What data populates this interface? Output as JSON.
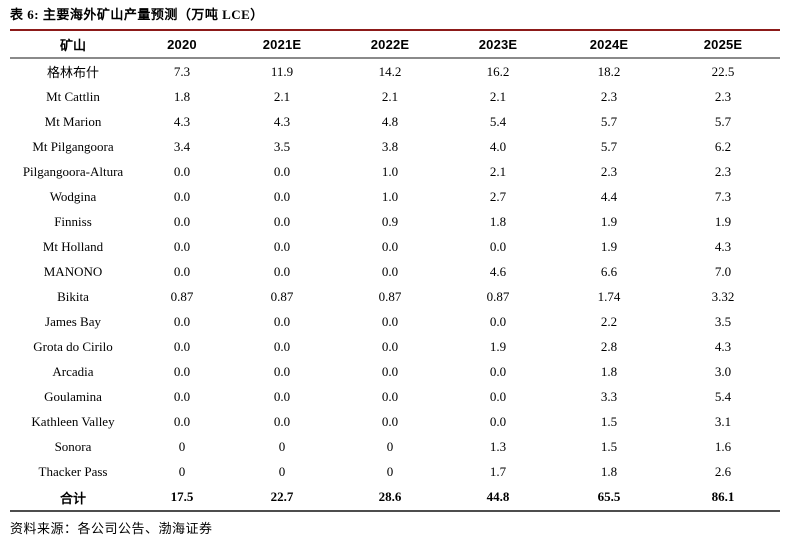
{
  "table": {
    "title": "表 6: 主要海外矿山产量预测（万吨 LCE）",
    "columns": [
      "矿山",
      "2020",
      "2021E",
      "2022E",
      "2023E",
      "2024E",
      "2025E"
    ],
    "rows": [
      {
        "name": "格林布什",
        "values": [
          "7.3",
          "11.9",
          "14.2",
          "16.2",
          "18.2",
          "22.5"
        ]
      },
      {
        "name": "Mt Cattlin",
        "values": [
          "1.8",
          "2.1",
          "2.1",
          "2.1",
          "2.3",
          "2.3"
        ]
      },
      {
        "name": "Mt Marion",
        "values": [
          "4.3",
          "4.3",
          "4.8",
          "5.4",
          "5.7",
          "5.7"
        ]
      },
      {
        "name": "Mt Pilgangoora",
        "values": [
          "3.4",
          "3.5",
          "3.8",
          "4.0",
          "5.7",
          "6.2"
        ]
      },
      {
        "name": "Pilgangoora-Altura",
        "values": [
          "0.0",
          "0.0",
          "1.0",
          "2.1",
          "2.3",
          "2.3"
        ]
      },
      {
        "name": "Wodgina",
        "values": [
          "0.0",
          "0.0",
          "1.0",
          "2.7",
          "4.4",
          "7.3"
        ]
      },
      {
        "name": "Finniss",
        "values": [
          "0.0",
          "0.0",
          "0.9",
          "1.8",
          "1.9",
          "1.9"
        ]
      },
      {
        "name": "Mt Holland",
        "values": [
          "0.0",
          "0.0",
          "0.0",
          "0.0",
          "1.9",
          "4.3"
        ]
      },
      {
        "name": "MANONO",
        "values": [
          "0.0",
          "0.0",
          "0.0",
          "4.6",
          "6.6",
          "7.0"
        ]
      },
      {
        "name": "Bikita",
        "values": [
          "0.87",
          "0.87",
          "0.87",
          "0.87",
          "1.74",
          "3.32"
        ]
      },
      {
        "name": "James Bay",
        "values": [
          "0.0",
          "0.0",
          "0.0",
          "0.0",
          "2.2",
          "3.5"
        ]
      },
      {
        "name": "Grota do Cirilo",
        "values": [
          "0.0",
          "0.0",
          "0.0",
          "1.9",
          "2.8",
          "4.3"
        ]
      },
      {
        "name": "Arcadia",
        "values": [
          "0.0",
          "0.0",
          "0.0",
          "0.0",
          "1.8",
          "3.0"
        ]
      },
      {
        "name": "Goulamina",
        "values": [
          "0.0",
          "0.0",
          "0.0",
          "0.0",
          "3.3",
          "5.4"
        ]
      },
      {
        "name": "Kathleen Valley",
        "values": [
          "0.0",
          "0.0",
          "0.0",
          "0.0",
          "1.5",
          "3.1"
        ]
      },
      {
        "name": "Sonora",
        "values": [
          "0",
          "0",
          "0",
          "1.3",
          "1.5",
          "1.6"
        ]
      },
      {
        "name": "Thacker Pass",
        "values": [
          "0",
          "0",
          "0",
          "1.7",
          "1.8",
          "2.6"
        ]
      }
    ],
    "total_row": {
      "name": "合计",
      "values": [
        "17.5",
        "22.7",
        "28.6",
        "44.8",
        "65.5",
        "86.1"
      ]
    },
    "source": "资料来源：各公司公告、渤海证券"
  },
  "colors": {
    "accent_red_rule": "#8c1a19",
    "header_gray_rule": "#8a8a8a",
    "bottom_dark_rule": "#4d4d4d",
    "text": "#000000",
    "background": "#ffffff"
  }
}
